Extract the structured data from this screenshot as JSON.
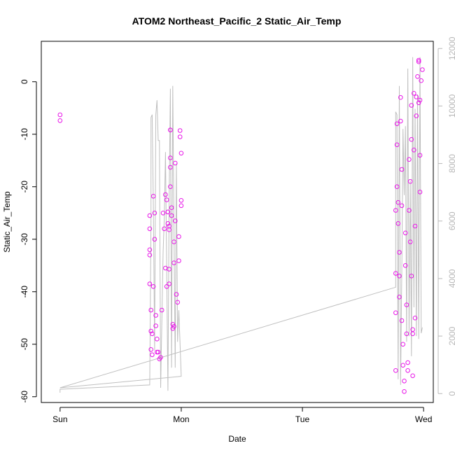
{
  "chart_data": {
    "type": "scatter",
    "title": "ATOM2 Northeast_Pacific_2 Static_Air_Temp",
    "xlabel": "Date",
    "ylabel": "Static_Air_Temp",
    "x_ticks": [
      {
        "label": "Sun",
        "day": 0
      },
      {
        "label": "Mon",
        "day": 1
      },
      {
        "label": "Tue",
        "day": 2
      },
      {
        "label": "Wed",
        "day": 3
      }
    ],
    "xlim_days": [
      -0.155,
      3.08
    ],
    "ylim": [
      -61.1,
      7.7
    ],
    "y_ticks": [
      0,
      -10,
      -20,
      -30,
      -40,
      -50,
      -60
    ],
    "y2lim": [
      -310,
      12250
    ],
    "y2_ticks": [
      0,
      2000,
      4000,
      6000,
      8000,
      10000,
      12000
    ],
    "grid": false,
    "colors": {
      "points": "#e816e8",
      "altitude_line": "#bfbfbf",
      "right_axis": "#b8b8b8"
    },
    "series": [
      {
        "kind": "points",
        "x": [
          0.0,
          0.0,
          0.74,
          0.74,
          0.74,
          0.74,
          0.74,
          0.75,
          0.75,
          0.75,
          0.76,
          0.76,
          0.77,
          0.77,
          0.78,
          0.78,
          0.79,
          0.79,
          0.8,
          0.8,
          0.81,
          0.82,
          0.83,
          0.84,
          0.85,
          0.86,
          0.87,
          0.87,
          0.88,
          0.88,
          0.89,
          0.89,
          0.89,
          0.9,
          0.9,
          0.9,
          0.9,
          0.91,
          0.91,
          0.91,
          0.91,
          0.91,
          0.92,
          0.92,
          0.93,
          0.93,
          0.94,
          0.94,
          0.94,
          0.95,
          0.95,
          0.96,
          0.97,
          0.98,
          0.98,
          0.99,
          0.99,
          1.0,
          1.0,
          1.0,
          2.77,
          2.77,
          2.77,
          2.77,
          2.78,
          2.78,
          2.78,
          2.79,
          2.79,
          2.8,
          2.8,
          2.8,
          2.81,
          2.81,
          2.82,
          2.82,
          2.82,
          2.83,
          2.83,
          2.84,
          2.84,
          2.85,
          2.85,
          2.86,
          2.86,
          2.87,
          2.87,
          2.88,
          2.88,
          2.89,
          2.89,
          2.9,
          2.9,
          2.9,
          2.91,
          2.91,
          2.91,
          2.92,
          2.92,
          2.93,
          2.93,
          2.94,
          2.94,
          2.95,
          2.96,
          2.96,
          2.96,
          2.97,
          2.97,
          2.97,
          2.98,
          2.99
        ],
        "y": [
          -6.3,
          -7.4,
          -25.5,
          -28.0,
          -32.0,
          -33.0,
          -38.5,
          -43.5,
          -47.5,
          -51.0,
          -52.0,
          -48.0,
          -39.0,
          -21.8,
          -25.0,
          -30.0,
          -44.5,
          -46.5,
          -49.0,
          -51.5,
          -51.5,
          -52.8,
          -52.5,
          -43.5,
          -25.0,
          -28.0,
          -35.5,
          -21.5,
          -22.5,
          -39.0,
          -24.8,
          -24.8,
          -27.0,
          -35.7,
          -38.5,
          -27.5,
          -28.2,
          -20.0,
          -16.3,
          -14.5,
          -9.2,
          -9.2,
          -24.0,
          -25.5,
          -46.2,
          -47.0,
          -30.5,
          -34.5,
          -46.6,
          -15.5,
          -26.5,
          -40.5,
          -42.0,
          -29.5,
          -34.1,
          -9.3,
          -10.5,
          -13.6,
          -22.6,
          -23.6,
          -24.5,
          -36.5,
          -44.0,
          -55.0,
          -8.0,
          -12.0,
          -20.0,
          -23.0,
          -27.0,
          -32.5,
          -37.0,
          -41.0,
          -3.0,
          -7.5,
          -16.7,
          -23.6,
          -45.5,
          -50.0,
          -54.0,
          -57.0,
          -59.0,
          -28.8,
          -35.0,
          -42.5,
          -48.0,
          -53.5,
          -55.0,
          -24.5,
          -14.8,
          -19.0,
          -30.5,
          -4.5,
          -11.0,
          -37.0,
          -47.2,
          -48.0,
          -56.0,
          -2.2,
          -13.0,
          -27.5,
          -45.0,
          -2.9,
          -6.5,
          1.0,
          3.8,
          4.1,
          -4.0,
          -14.0,
          -21.0,
          -3.5,
          0.2,
          2.3
        ],
        "y2": []
      },
      {
        "kind": "line",
        "name": "",
        "x": [
          0.0,
          0.0,
          0.0,
          0.74,
          0.75,
          0.75,
          0.76,
          0.77,
          0.78,
          0.79,
          0.8,
          0.81,
          0.82,
          0.82,
          0.83,
          0.85,
          0.86,
          0.87,
          0.89,
          0.9,
          0.91,
          0.92,
          0.93,
          0.95,
          0.96,
          0.97,
          0.98,
          1.0,
          0.0,
          2.77,
          2.77,
          2.77,
          2.78,
          2.79,
          2.8,
          2.81,
          2.82,
          2.83,
          2.84,
          2.85,
          2.86,
          2.87,
          2.88,
          2.89,
          2.9,
          2.91,
          2.92,
          2.93,
          2.94,
          2.95,
          2.96,
          2.97,
          2.98,
          2.99
        ],
        "y2": [
          150,
          30,
          150,
          300,
          6000,
          9600,
          9700,
          6500,
          1500,
          9700,
          10200,
          8800,
          8800,
          8600,
          200,
          4900,
          6100,
          8400,
          100,
          6700,
          10600,
          900,
          10700,
          900,
          8000,
          1800,
          2900,
          600,
          200,
          3700,
          7200,
          9800,
          9700,
          500,
          10700,
          300,
          4200,
          9200,
          6900,
          9300,
          1800,
          11300,
          2000,
          7400,
          1300,
          11700,
          3000,
          9900,
          2000,
          10400,
          1900,
          11700,
          2100,
          2300
        ]
      }
    ]
  }
}
